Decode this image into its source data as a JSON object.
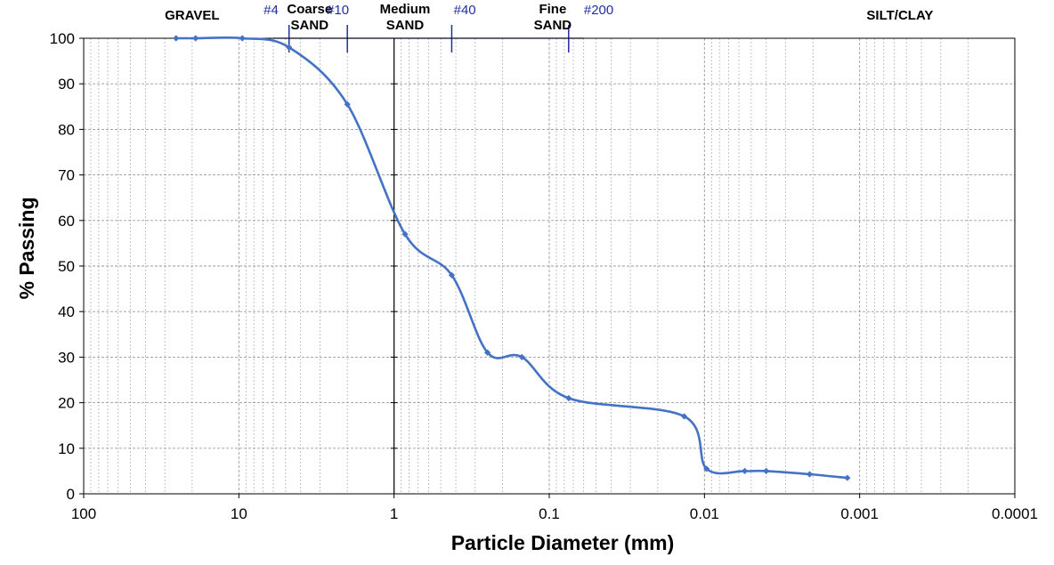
{
  "chart_data": {
    "type": "line",
    "xlabel": "Particle Diameter (mm)",
    "ylabel": "% Passing",
    "x_scale": "log",
    "x_reversed": true,
    "xlim": [
      100,
      0.0001
    ],
    "ylim": [
      0,
      100
    ],
    "x_ticks": [
      100,
      10,
      1,
      0.1,
      0.01,
      0.001,
      0.0001
    ],
    "x_tick_labels": [
      "100",
      "10",
      "1",
      "0.1",
      "0.01",
      "0.001",
      "0.0001"
    ],
    "y_ticks": [
      0,
      10,
      20,
      30,
      40,
      50,
      60,
      70,
      80,
      90,
      100
    ],
    "y_tick_labels": [
      "0",
      "10",
      "20",
      "30",
      "40",
      "50",
      "60",
      "70",
      "80",
      "90",
      "100"
    ],
    "grid": true,
    "series_color": "#4472c4",
    "sieve_color": "#1f2fa0",
    "x": [
      25.4,
      19.0,
      9.5,
      4.75,
      2.0,
      0.85,
      0.425,
      0.25,
      0.15,
      0.075,
      0.0135,
      0.0097,
      0.0055,
      0.004,
      0.0021,
      0.0012
    ],
    "y": [
      100,
      100,
      100,
      98,
      85.5,
      57,
      48,
      31,
      30,
      21,
      17,
      5.5,
      5,
      5,
      4.3,
      3.5
    ],
    "series": [
      {
        "values": [
          100,
          100,
          100,
          98,
          85.5,
          57,
          48,
          31,
          30,
          21,
          17,
          5.5,
          5,
          5,
          4.3,
          3.5
        ]
      }
    ],
    "soil_zones": [
      {
        "lines": [
          "GRAVEL"
        ],
        "center_mm": 20
      },
      {
        "lines": [
          "Coarse",
          "SAND"
        ],
        "center_mm": 3.5
      },
      {
        "lines": [
          "Medium",
          "SAND"
        ],
        "center_mm": 0.85
      },
      {
        "lines": [
          "Fine",
          "SAND"
        ],
        "center_mm": 0.095
      },
      {
        "lines": [
          "SILT/CLAY"
        ],
        "center_mm": 0.00055
      }
    ],
    "sieve_labels": [
      {
        "label": "#4",
        "size_mm": 6.2
      },
      {
        "label": "#10",
        "size_mm": 2.3
      },
      {
        "label": "#40",
        "size_mm": 0.35
      },
      {
        "label": "#200",
        "size_mm": 0.048
      }
    ],
    "boundary_marks_mm": [
      2.0,
      4.75,
      0.425,
      0.075
    ]
  }
}
